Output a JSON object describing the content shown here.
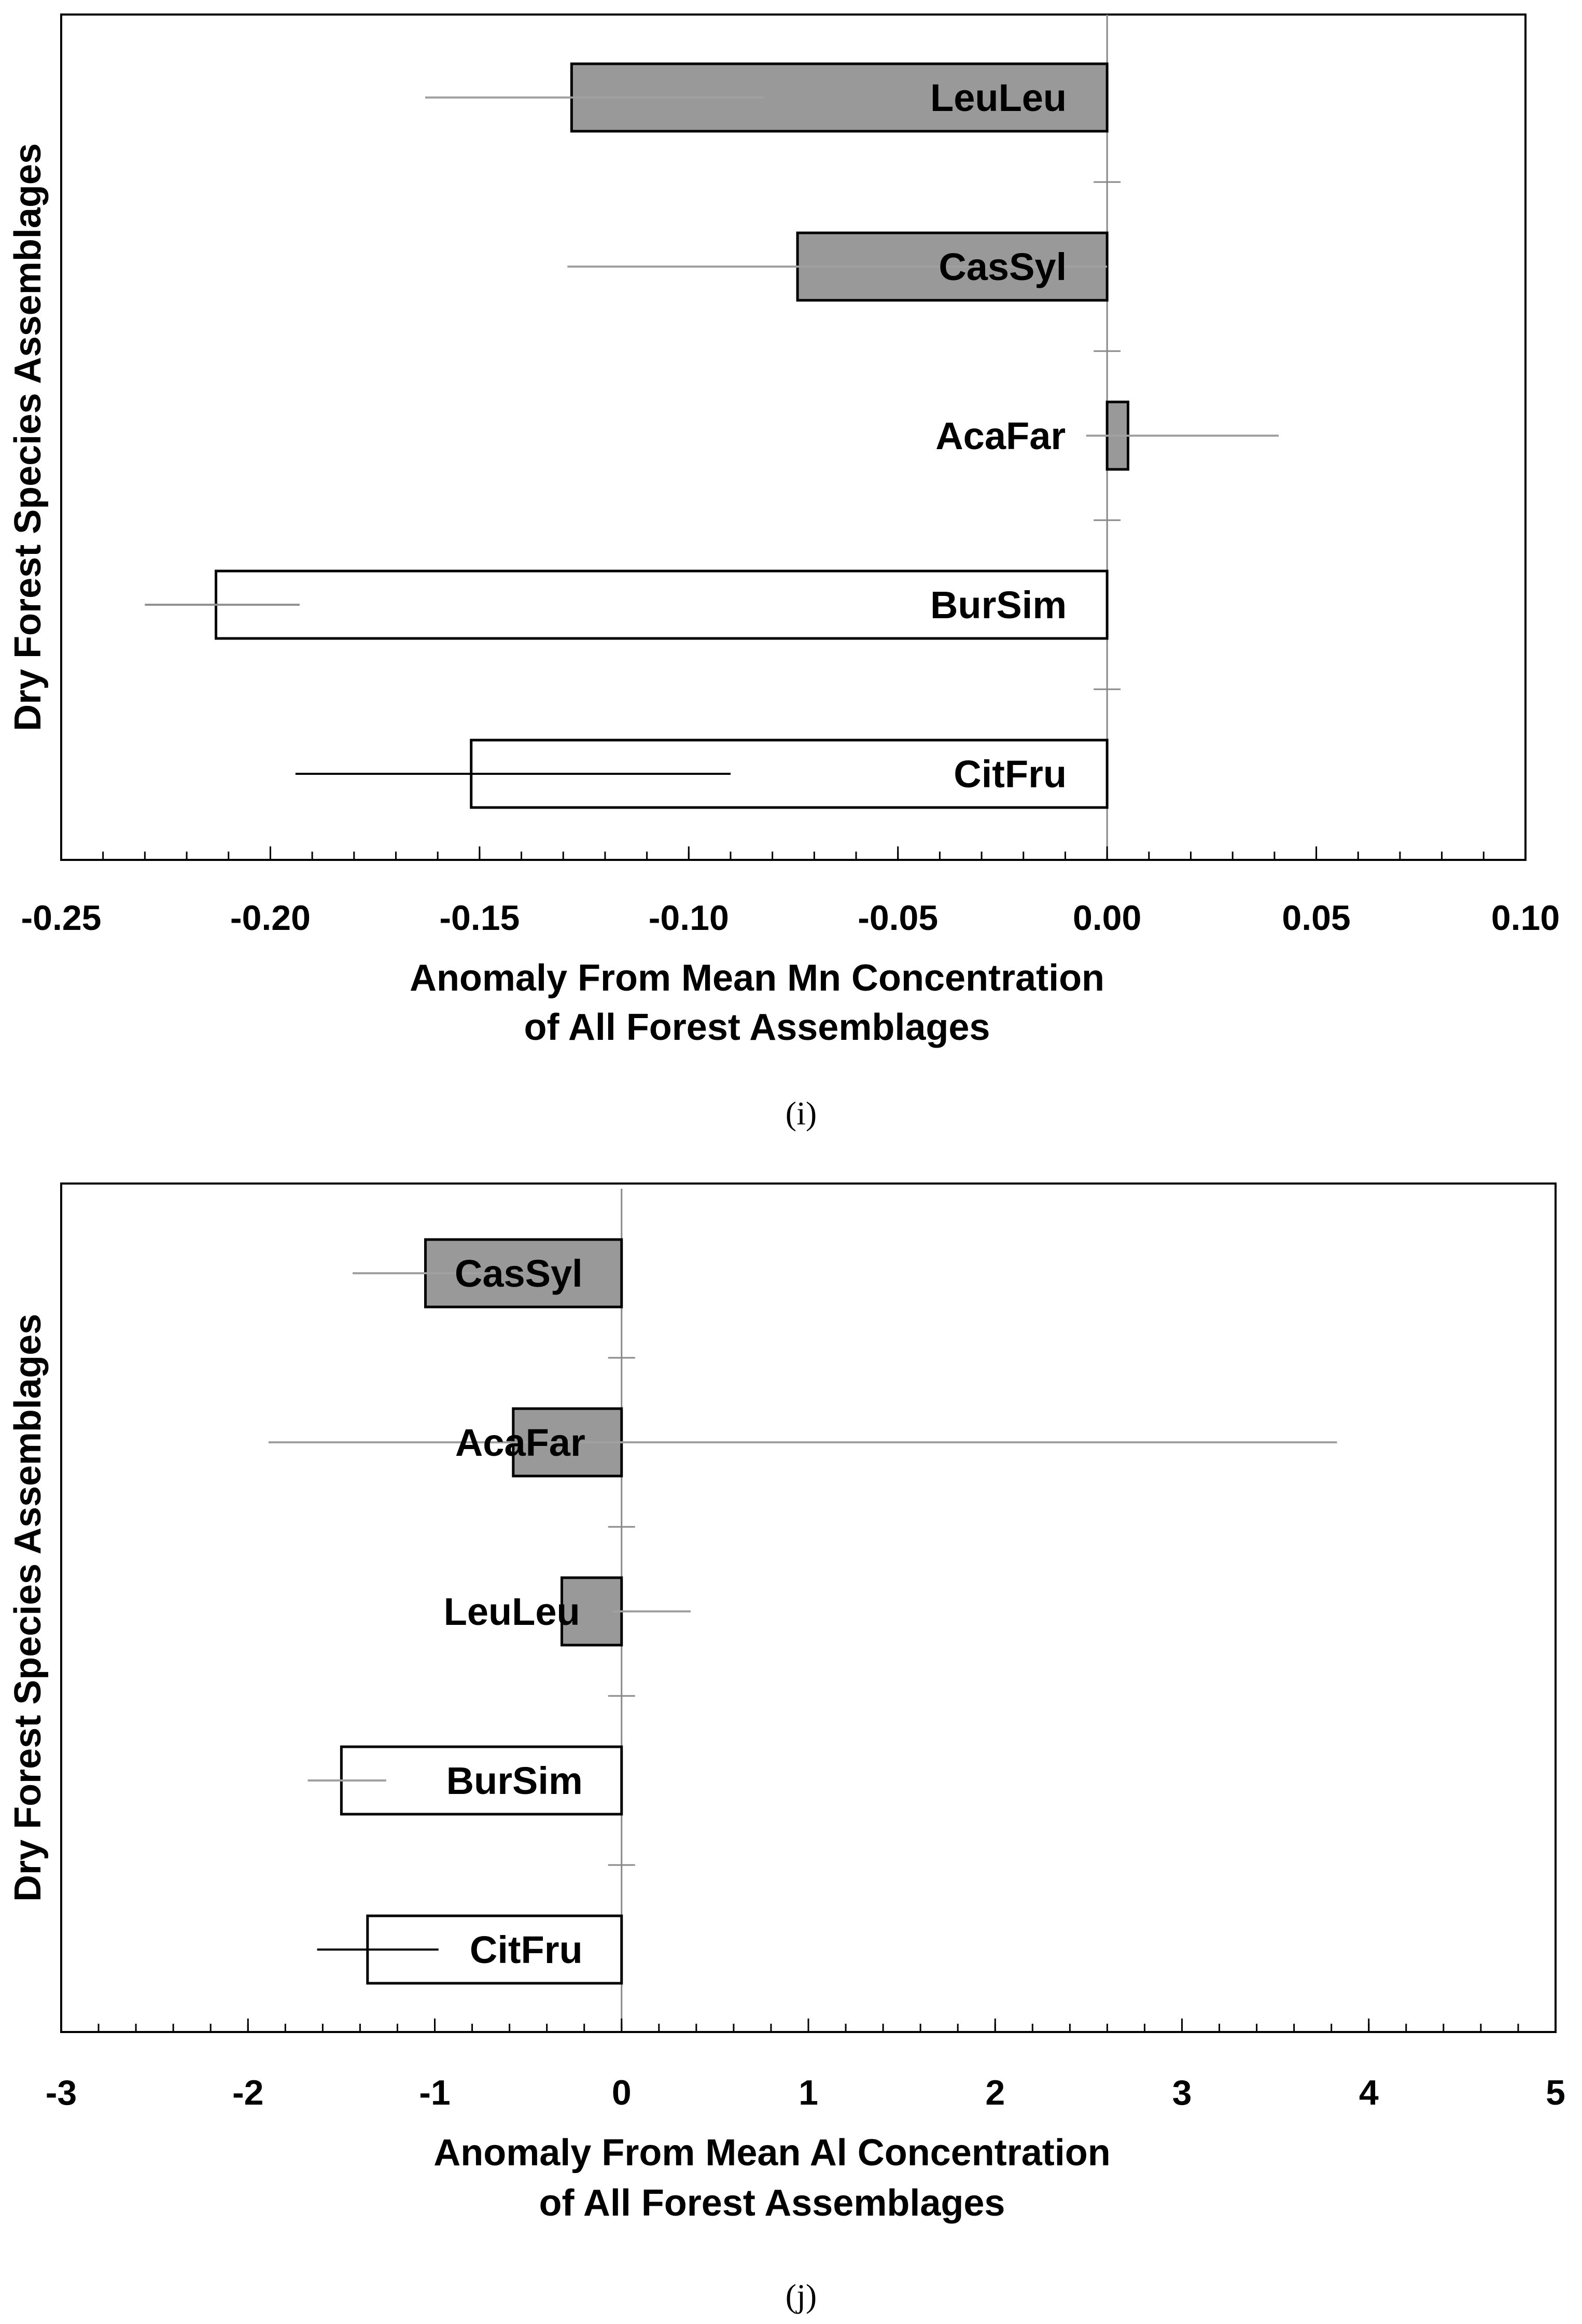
{
  "chart_data": [
    {
      "type": "bar",
      "orientation": "horizontal",
      "panel_label": "(i)",
      "ylabel": "Dry Forest Species Assemblages",
      "xlabel_line1": "Anomaly From Mean Mn Concentration",
      "xlabel_line2": "of All Forest Assemblages",
      "xlim": [
        -0.25,
        0.1
      ],
      "xticks": [
        -0.25,
        -0.2,
        -0.15,
        -0.1,
        -0.05,
        0.0,
        0.05,
        0.1
      ],
      "xtick_labels": [
        "-0.25",
        "-0.20",
        "-0.15",
        "-0.10",
        "-0.05",
        "0.00",
        "0.05",
        "0.10"
      ],
      "minor_step": 0.01,
      "categories": [
        "LeuLeu",
        "CasSyl",
        "AcaFar",
        "BurSim",
        "CitFru"
      ],
      "values": [
        -0.128,
        -0.074,
        0.005,
        -0.213,
        -0.152
      ],
      "error_low": [
        -0.163,
        -0.129,
        -0.005,
        -0.23,
        -0.194
      ],
      "error_high": [
        -0.082,
        0.0,
        0.041,
        -0.193,
        -0.09
      ],
      "fill": [
        "#999999",
        "#999999",
        "#999999",
        "#ffffff",
        "#ffffff"
      ],
      "error_color": [
        "#a0a0a0",
        "#a0a0a0",
        "#a0a0a0",
        "#909090",
        "#000000"
      ],
      "grid": false
    },
    {
      "type": "bar",
      "orientation": "horizontal",
      "panel_label": "(j)",
      "ylabel": "Dry Forest Species Assemblages",
      "xlabel_line1": "Anomaly From Mean Al Concentration",
      "xlabel_line2": "of All Forest Assemblages",
      "xlim": [
        -3,
        5
      ],
      "xticks": [
        -3,
        -2,
        -1,
        0,
        1,
        2,
        3,
        4,
        5
      ],
      "xtick_labels": [
        "-3",
        "-2",
        "-1",
        "0",
        "1",
        "2",
        "3",
        "4",
        "5"
      ],
      "minor_step": 0.2,
      "categories": [
        "CasSyl",
        "AcaFar",
        "LeuLeu",
        "BurSim",
        "CitFru"
      ],
      "values": [
        -1.05,
        -0.58,
        -0.32,
        -1.5,
        -1.36
      ],
      "error_low": [
        -1.44,
        -1.89,
        -0.05,
        -1.68,
        -1.63
      ],
      "error_high": [
        -0.73,
        3.83,
        0.37,
        -1.26,
        -0.98
      ],
      "fill": [
        "#999999",
        "#999999",
        "#999999",
        "#ffffff",
        "#ffffff"
      ],
      "error_color": [
        "#a0a0a0",
        "#a0a0a0",
        "#a0a0a0",
        "#a0a0a0",
        "#000000"
      ],
      "grid": false
    }
  ]
}
